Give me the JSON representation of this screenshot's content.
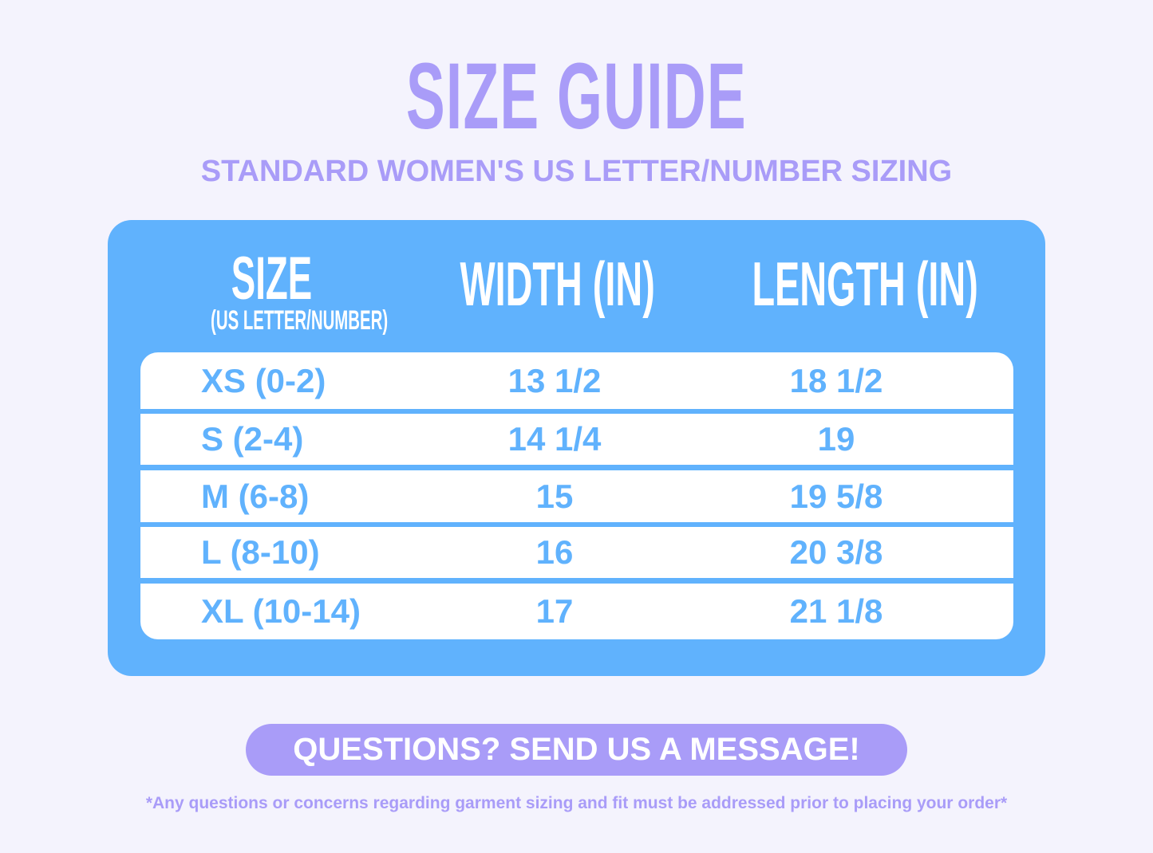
{
  "title": "SIZE GUIDE",
  "subtitle": "STANDARD WOMEN'S US LETTER/NUMBER SIZING",
  "table": {
    "headers": {
      "size": "SIZE",
      "size_sub": "(US LETTER/NUMBER)",
      "width": "WIDTH (IN)",
      "length": "LENGTH (IN)"
    },
    "rows": [
      {
        "size": "XS (0-2)",
        "width": "13 1/2",
        "length": "18 1/2"
      },
      {
        "size": "S (2-4)",
        "width": "14 1/4",
        "length": "19"
      },
      {
        "size": "M (6-8)",
        "width": "15",
        "length": "19 5/8"
      },
      {
        "size": "L (8-10)",
        "width": "16",
        "length": "20 3/8"
      },
      {
        "size": "XL (10-14)",
        "width": "17",
        "length": "21 1/8"
      }
    ]
  },
  "cta": "QUESTIONS? SEND US A MESSAGE!",
  "note": "*Any questions or concerns regarding garment sizing and fit must be addressed prior to placing your order*",
  "colors": {
    "purple": "#a99cf8",
    "blue": "#60b2fd",
    "background": "#f4f3fd"
  }
}
